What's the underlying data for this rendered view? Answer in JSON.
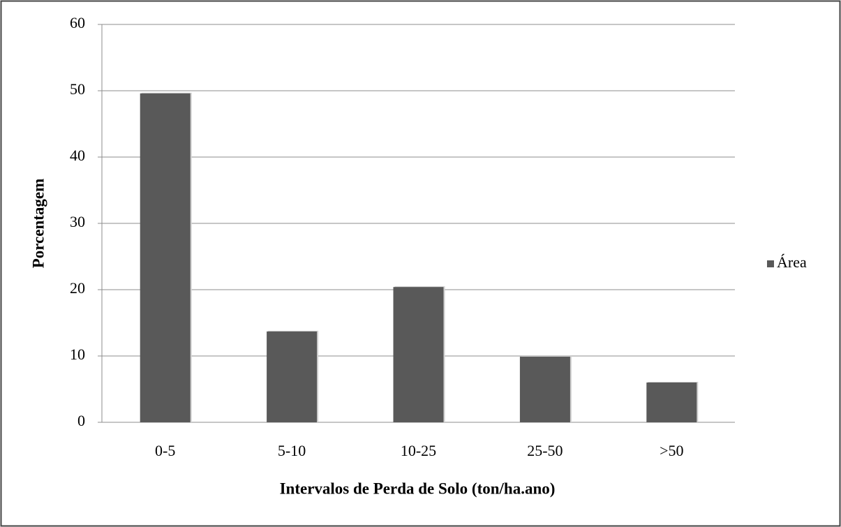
{
  "chart_data": {
    "type": "bar",
    "x_label": "Intervalos de Perda de Solo (ton/ha.ano)",
    "y_label": "Porcentagem",
    "categories": [
      "0-5",
      "5-10",
      "10-25",
      "25-50",
      ">50"
    ],
    "series": [
      {
        "name": "Área",
        "color": "#595959",
        "values": [
          49.6,
          13.7,
          20.4,
          9.9,
          6.0
        ]
      }
    ],
    "ylim": [
      0,
      60
    ],
    "yticks": [
      0,
      10,
      20,
      30,
      40,
      50,
      60
    ],
    "grid": true,
    "legend": "right"
  }
}
